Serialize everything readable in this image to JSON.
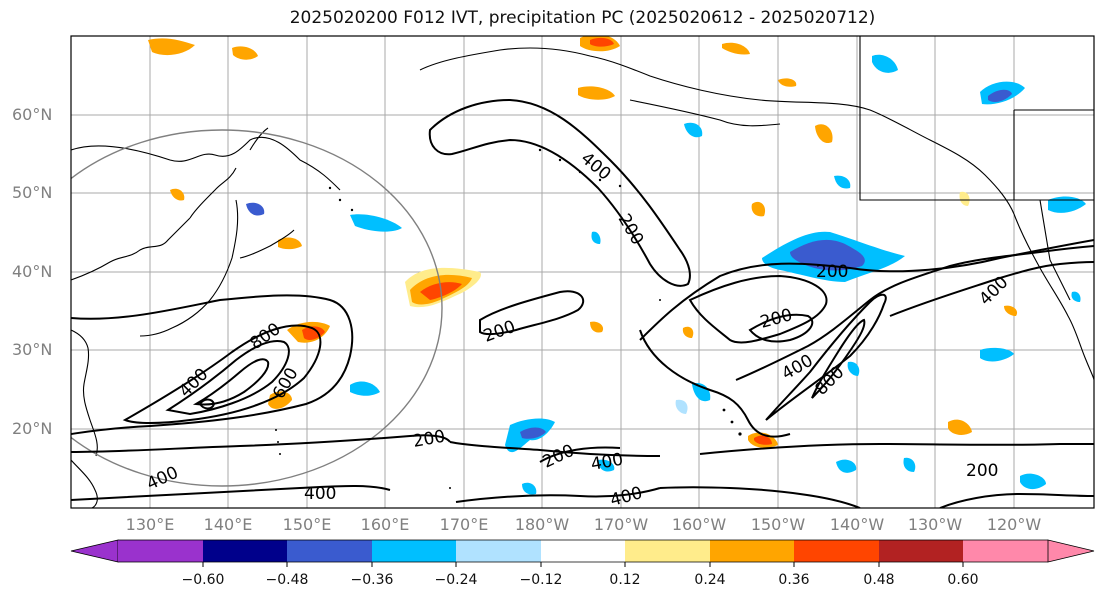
{
  "title": "2025020200 F012 IVT, precipitation PC (2025020612 - 2025020712)",
  "lat_labels": [
    "60°N",
    "50°N",
    "40°N",
    "30°N",
    "20°N"
  ],
  "lon_labels": [
    "130°E",
    "140°E",
    "150°E",
    "160°E",
    "170°E",
    "180°W",
    "170°W",
    "160°W",
    "150°W",
    "140°W",
    "130°W",
    "120°W"
  ],
  "contour_labels": [
    "400",
    "200",
    "800",
    "400",
    "600",
    "200",
    "200",
    "200",
    "400",
    "800",
    "400",
    "200",
    "200",
    "400",
    "400",
    "200",
    "400",
    "400"
  ],
  "colorbar": {
    "tick_labels": [
      "−0.60",
      "−0.48",
      "−0.36",
      "−0.24",
      "−0.12",
      "0.12",
      "0.24",
      "0.36",
      "0.48",
      "0.60"
    ],
    "colors": [
      "#9a32cd",
      "#00008b",
      "#3a5bcf",
      "#00bfff",
      "#b0e2ff",
      "#ffffff",
      "#ffec8b",
      "#ffa500",
      "#ff4500",
      "#b22222",
      "#ff88aa"
    ]
  }
}
